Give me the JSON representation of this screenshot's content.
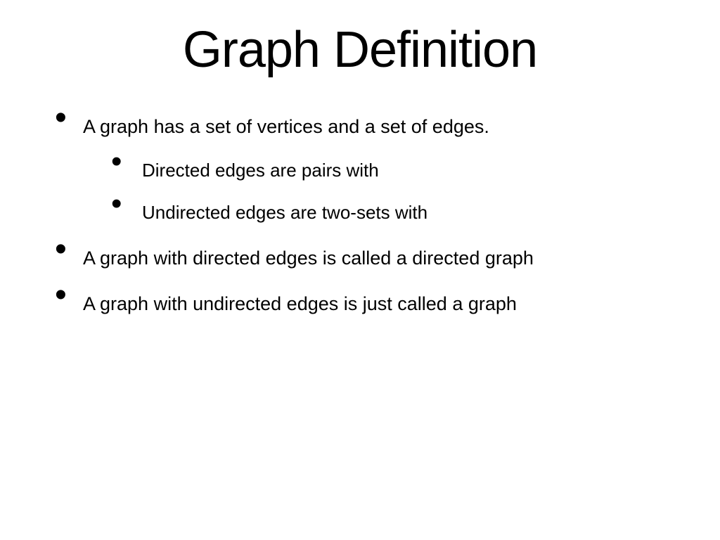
{
  "slide": {
    "title": "Graph Definition",
    "bullets": [
      {
        "text": "A graph has a set of vertices  and a set of edges.",
        "sub": [
          {
            "text": "Directed edges are pairs  with"
          },
          {
            "text": "Undirected edges are two-sets  with"
          }
        ]
      },
      {
        "text": "A graph with directed edges is called a directed graph"
      },
      {
        "text": "A graph with undirected edges is just called a graph"
      }
    ],
    "styling": {
      "background_color": "#ffffff",
      "text_color": "#000000",
      "title_fontsize": 72,
      "bullet_fontsize": 27,
      "sub_bullet_fontsize": 26,
      "font_family": "Arial"
    }
  }
}
